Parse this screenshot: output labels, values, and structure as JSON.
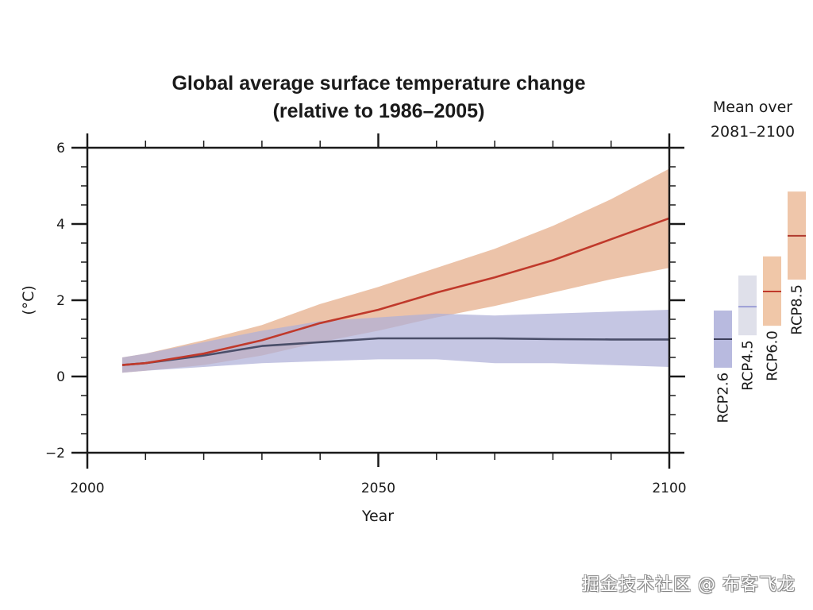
{
  "chart_data": {
    "type": "area",
    "title": "Global average surface temperature change",
    "subtitle": "(relative to 1986–2005)",
    "xlabel": "Year",
    "ylabel": "(°C)",
    "xlim": [
      2000,
      2100
    ],
    "ylim": [
      -2,
      6
    ],
    "x_ticks_major": [
      2000,
      2050,
      2100
    ],
    "x_tick_labels": [
      "2000",
      "2050",
      "2100"
    ],
    "x_minor_step": 10,
    "y_ticks_major": [
      -2,
      0,
      2,
      4,
      6
    ],
    "y_tick_labels": [
      "−2",
      "0",
      "2",
      "4",
      "6"
    ],
    "y_minor_step": 0.5,
    "grid": false,
    "x": [
      2006,
      2010,
      2020,
      2030,
      2040,
      2050,
      2060,
      2070,
      2080,
      2090,
      2100
    ],
    "series": [
      {
        "name": "RCP8.5",
        "color": "#c0392b",
        "band_color": "#e9b99a",
        "mean": [
          0.3,
          0.35,
          0.6,
          0.95,
          1.4,
          1.75,
          2.2,
          2.6,
          3.05,
          3.6,
          4.15
        ],
        "upper": [
          0.5,
          0.6,
          0.95,
          1.35,
          1.9,
          2.35,
          2.85,
          3.35,
          3.95,
          4.65,
          5.45
        ],
        "lower": [
          0.1,
          0.15,
          0.3,
          0.55,
          0.9,
          1.2,
          1.55,
          1.85,
          2.2,
          2.55,
          2.85
        ]
      },
      {
        "name": "RCP2.6",
        "color": "#4a4e69",
        "band_color": "#aeb0d8",
        "mean": [
          0.3,
          0.35,
          0.55,
          0.8,
          0.9,
          1.0,
          1.0,
          1.0,
          0.98,
          0.97,
          0.97
        ],
        "upper": [
          0.5,
          0.6,
          0.9,
          1.2,
          1.45,
          1.55,
          1.65,
          1.6,
          1.65,
          1.7,
          1.75
        ],
        "lower": [
          0.1,
          0.15,
          0.25,
          0.35,
          0.4,
          0.45,
          0.45,
          0.35,
          0.35,
          0.3,
          0.25
        ]
      }
    ],
    "side_panel": {
      "title_line1": "Mean over",
      "title_line2": "2081–2100",
      "bars": [
        {
          "name": "RCP2.6",
          "mean": 0.98,
          "low": 0.23,
          "high": 1.73,
          "fill": "#b8badf",
          "line": "#3d3f5a"
        },
        {
          "name": "RCP4.5",
          "mean": 1.83,
          "low": 1.08,
          "high": 2.65,
          "fill": "#dfe0ea",
          "line": "#9c9ed6"
        },
        {
          "name": "RCP6.0",
          "mean": 2.23,
          "low": 1.33,
          "high": 3.15,
          "fill": "#f0c7a8",
          "line": "#c0392b"
        },
        {
          "name": "RCP8.5",
          "mean": 3.69,
          "low": 2.54,
          "high": 4.85,
          "fill": "#efc6aa",
          "line": "#b03a2e"
        }
      ]
    }
  },
  "watermark": "掘金技术社区 @ 布客飞龙"
}
